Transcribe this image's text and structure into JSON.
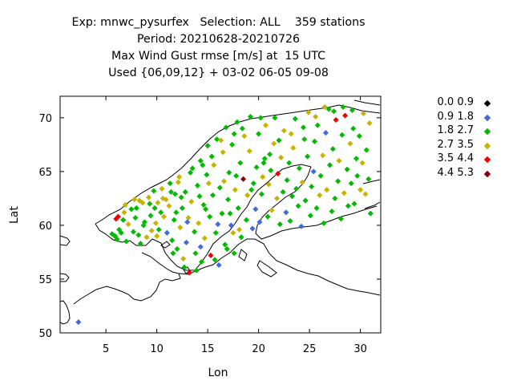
{
  "title_lines": [
    "Exp: mnwc_pysurfex   Selection: ALL    359 stations",
    "Period: 20210628-20210726",
    "Max Wind Gust rmse [m/s] at  15 UTC",
    "Used {06,09,12} + 03-02 06-05 09-08"
  ],
  "chart_data": {
    "type": "scatter",
    "xlabel": "Lon",
    "ylabel": "Lat",
    "xlim": [
      0.5,
      32
    ],
    "ylim": [
      50,
      72
    ],
    "xticks": [
      5,
      10,
      15,
      20,
      25,
      30
    ],
    "yticks": [
      50,
      55,
      60,
      65,
      70
    ],
    "grid": false,
    "legend_position": "right",
    "legend": [
      {
        "label": "0.0 0.9",
        "color": "#000000"
      },
      {
        "label": "0.9 1.8",
        "color": "#4169e1"
      },
      {
        "label": "1.8 2.7",
        "color": "#00bb00"
      },
      {
        "label": "2.7 3.5",
        "color": "#c8b400"
      },
      {
        "label": "3.5 4.4",
        "color": "#ee0000"
      },
      {
        "label": "4.4 5.3",
        "color": "#8b0000"
      }
    ],
    "points": [
      [
        2.3,
        51.0,
        1
      ],
      [
        5.6,
        59.2,
        2
      ],
      [
        5.9,
        59.0,
        2
      ],
      [
        6.1,
        58.7,
        2
      ],
      [
        6.3,
        59.6,
        2
      ],
      [
        6.5,
        59.3,
        2
      ],
      [
        6.0,
        60.6,
        4
      ],
      [
        6.2,
        60.8,
        4
      ],
      [
        6.7,
        60.5,
        2
      ],
      [
        6.9,
        61.9,
        3
      ],
      [
        7.2,
        60.1,
        3
      ],
      [
        7.5,
        61.5,
        2
      ],
      [
        7.7,
        59.4,
        2
      ],
      [
        7.9,
        60.7,
        2
      ],
      [
        8.0,
        61.6,
        2
      ],
      [
        8.2,
        59.1,
        2
      ],
      [
        8.3,
        62.3,
        3
      ],
      [
        8.6,
        62.1,
        3
      ],
      [
        8.8,
        60.3,
        2
      ],
      [
        9.0,
        58.9,
        3
      ],
      [
        9.2,
        62.6,
        3
      ],
      [
        9.4,
        60.9,
        2
      ],
      [
        9.5,
        59.5,
        3
      ],
      [
        9.7,
        63.2,
        2
      ],
      [
        9.9,
        60.2,
        3
      ],
      [
        10.1,
        62.1,
        3
      ],
      [
        10.2,
        59.6,
        2
      ],
      [
        10.4,
        61.2,
        2
      ],
      [
        10.5,
        63.4,
        3
      ],
      [
        10.7,
        60.8,
        3
      ],
      [
        10.9,
        62.4,
        3
      ],
      [
        11.0,
        59.3,
        1
      ],
      [
        11.2,
        61.8,
        3
      ],
      [
        11.3,
        63.9,
        2
      ],
      [
        11.5,
        58.6,
        2
      ],
      [
        11.7,
        60.5,
        2
      ],
      [
        11.8,
        62.9,
        2
      ],
      [
        12.0,
        57.8,
        2
      ],
      [
        12.2,
        64.5,
        3
      ],
      [
        12.3,
        59.8,
        3
      ],
      [
        12.5,
        61.6,
        2
      ],
      [
        12.6,
        56.9,
        3
      ],
      [
        12.8,
        63.1,
        2
      ],
      [
        12.9,
        58.4,
        1
      ],
      [
        13.1,
        60.7,
        3
      ],
      [
        13.2,
        55.6,
        4
      ],
      [
        13.4,
        62.2,
        3
      ],
      [
        13.5,
        65.3,
        2
      ],
      [
        13.7,
        59.4,
        2
      ],
      [
        13.8,
        57.4,
        2
      ],
      [
        14.0,
        63.7,
        2
      ],
      [
        14.1,
        60.2,
        3
      ],
      [
        14.3,
        66.0,
        2
      ],
      [
        14.4,
        56.6,
        2
      ],
      [
        14.6,
        61.9,
        2
      ],
      [
        14.7,
        58.8,
        3
      ],
      [
        14.9,
        64.7,
        2
      ],
      [
        15.0,
        67.4,
        2
      ],
      [
        15.2,
        60.8,
        2
      ],
      [
        15.3,
        57.2,
        4
      ],
      [
        15.5,
        62.8,
        2
      ],
      [
        15.6,
        65.6,
        3
      ],
      [
        15.8,
        59.3,
        2
      ],
      [
        15.9,
        68.0,
        2
      ],
      [
        16.1,
        56.3,
        1
      ],
      [
        16.2,
        63.5,
        2
      ],
      [
        16.4,
        61.1,
        2
      ],
      [
        16.5,
        66.8,
        3
      ],
      [
        16.7,
        58.2,
        2
      ],
      [
        16.8,
        69.1,
        2
      ],
      [
        17.0,
        62.4,
        2
      ],
      [
        17.1,
        64.9,
        2
      ],
      [
        17.3,
        60.0,
        1
      ],
      [
        17.4,
        67.5,
        2
      ],
      [
        17.6,
        57.4,
        2
      ],
      [
        17.7,
        63.3,
        3
      ],
      [
        17.9,
        69.6,
        2
      ],
      [
        18.0,
        61.6,
        2
      ],
      [
        18.2,
        65.8,
        2
      ],
      [
        18.3,
        58.9,
        2
      ],
      [
        18.5,
        64.3,
        5
      ],
      [
        18.6,
        68.3,
        3
      ],
      [
        18.8,
        60.5,
        2
      ],
      [
        18.9,
        62.8,
        3
      ],
      [
        19.1,
        66.9,
        3
      ],
      [
        19.2,
        70.1,
        2
      ],
      [
        19.4,
        59.7,
        1
      ],
      [
        19.5,
        63.9,
        2
      ],
      [
        19.7,
        61.5,
        1
      ],
      [
        19.8,
        65.4,
        2
      ],
      [
        20.0,
        68.5,
        2
      ],
      [
        20.1,
        60.3,
        1
      ],
      [
        20.3,
        62.9,
        2
      ],
      [
        20.4,
        64.5,
        3
      ],
      [
        20.6,
        66.2,
        2
      ],
      [
        20.7,
        69.3,
        3
      ],
      [
        20.9,
        60.8,
        2
      ],
      [
        21.0,
        63.8,
        3
      ],
      [
        21.2,
        65.1,
        2
      ],
      [
        21.3,
        61.4,
        3
      ],
      [
        21.5,
        67.6,
        3
      ],
      [
        21.6,
        70.0,
        2
      ],
      [
        21.8,
        62.5,
        3
      ],
      [
        21.9,
        64.8,
        4
      ],
      [
        22.1,
        60.1,
        2
      ],
      [
        22.2,
        66.3,
        3
      ],
      [
        22.4,
        63.1,
        2
      ],
      [
        22.5,
        68.8,
        3
      ],
      [
        22.7,
        61.2,
        1
      ],
      [
        22.8,
        64.2,
        2
      ],
      [
        23.0,
        65.8,
        2
      ],
      [
        23.1,
        60.4,
        2
      ],
      [
        23.3,
        62.7,
        2
      ],
      [
        23.4,
        67.2,
        3
      ],
      [
        23.6,
        69.9,
        2
      ],
      [
        23.7,
        63.4,
        2
      ],
      [
        23.9,
        61.8,
        2
      ],
      [
        24.0,
        65.3,
        2
      ],
      [
        24.2,
        59.9,
        1
      ],
      [
        24.3,
        64.0,
        3
      ],
      [
        24.5,
        68.0,
        2
      ],
      [
        24.6,
        62.3,
        2
      ],
      [
        24.8,
        66.4,
        2
      ],
      [
        24.9,
        70.5,
        3
      ],
      [
        25.1,
        60.9,
        2
      ],
      [
        25.2,
        63.6,
        2
      ],
      [
        25.4,
        65.0,
        1
      ],
      [
        25.5,
        67.8,
        2
      ],
      [
        25.7,
        61.6,
        2
      ],
      [
        25.8,
        69.3,
        2
      ],
      [
        26.0,
        62.8,
        3
      ],
      [
        26.1,
        64.6,
        2
      ],
      [
        26.3,
        66.5,
        3
      ],
      [
        26.4,
        60.2,
        2
      ],
      [
        26.6,
        68.6,
        1
      ],
      [
        26.7,
        63.3,
        3
      ],
      [
        26.9,
        70.8,
        2
      ],
      [
        27.0,
        65.6,
        2
      ],
      [
        27.2,
        61.3,
        2
      ],
      [
        27.3,
        67.1,
        2
      ],
      [
        27.5,
        62.5,
        2
      ],
      [
        27.6,
        69.8,
        4
      ],
      [
        27.8,
        64.1,
        2
      ],
      [
        27.9,
        66.0,
        3
      ],
      [
        28.1,
        60.6,
        2
      ],
      [
        28.2,
        68.4,
        2
      ],
      [
        28.4,
        63.0,
        3
      ],
      [
        28.5,
        70.2,
        4
      ],
      [
        28.7,
        65.2,
        2
      ],
      [
        28.8,
        61.8,
        2
      ],
      [
        29.0,
        67.6,
        3
      ],
      [
        29.1,
        63.9,
        2
      ],
      [
        29.3,
        69.0,
        2
      ],
      [
        29.4,
        62.0,
        2
      ],
      [
        29.6,
        66.2,
        2
      ],
      [
        29.7,
        64.6,
        2
      ],
      [
        29.9,
        68.3,
        2
      ],
      [
        30.0,
        63.3,
        3
      ],
      [
        30.2,
        65.8,
        3
      ],
      [
        30.3,
        70.4,
        3
      ],
      [
        30.5,
        62.9,
        3
      ],
      [
        30.6,
        67.0,
        2
      ],
      [
        30.8,
        64.3,
        2
      ],
      [
        30.9,
        69.5,
        3
      ],
      [
        31.0,
        61.1,
        2
      ],
      [
        7.0,
        58.5,
        2
      ],
      [
        8.4,
        58.3,
        2
      ],
      [
        10.0,
        59.0,
        3
      ],
      [
        11.6,
        57.4,
        2
      ],
      [
        12.7,
        56.1,
        2
      ],
      [
        13.9,
        55.8,
        2
      ],
      [
        14.3,
        58.0,
        1
      ],
      [
        15.7,
        56.8,
        2
      ],
      [
        16.9,
        57.8,
        2
      ],
      [
        17.5,
        59.3,
        3
      ],
      [
        18.1,
        59.6,
        3
      ],
      [
        13.0,
        60.3,
        1
      ],
      [
        14.8,
        61.5,
        2
      ],
      [
        16.0,
        60.1,
        1
      ],
      [
        17.2,
        61.1,
        2
      ],
      [
        9.8,
        61.6,
        2
      ],
      [
        8.7,
        60.0,
        2
      ],
      [
        11.9,
        61.2,
        2
      ],
      [
        12.4,
        62.6,
        2
      ],
      [
        14.2,
        62.7,
        2
      ],
      [
        15.1,
        63.9,
        3
      ],
      [
        16.6,
        64.1,
        3
      ],
      [
        17.8,
        64.6,
        2
      ],
      [
        19.3,
        63.3,
        2
      ],
      [
        20.5,
        65.8,
        2
      ],
      [
        21.1,
        66.6,
        2
      ],
      [
        22.0,
        67.9,
        2
      ],
      [
        23.2,
        68.5,
        3
      ],
      [
        24.4,
        69.1,
        2
      ],
      [
        25.6,
        70.1,
        3
      ],
      [
        26.5,
        71.0,
        3
      ],
      [
        27.4,
        70.6,
        2
      ],
      [
        28.3,
        71.0,
        2
      ],
      [
        29.2,
        70.7,
        2
      ],
      [
        20.2,
        70.0,
        2
      ],
      [
        18.4,
        69.0,
        2
      ],
      [
        17.6,
        68.5,
        2
      ],
      [
        16.3,
        67.9,
        3
      ],
      [
        15.4,
        66.4,
        2
      ],
      [
        14.5,
        65.6,
        2
      ],
      [
        13.3,
        64.9,
        2
      ],
      [
        12.1,
        64.0,
        3
      ],
      [
        11.4,
        63.1,
        2
      ],
      [
        10.6,
        62.5,
        3
      ],
      [
        9.3,
        62.0,
        2
      ],
      [
        7.8,
        62.4,
        3
      ],
      [
        6.8,
        61.2,
        3
      ]
    ]
  }
}
